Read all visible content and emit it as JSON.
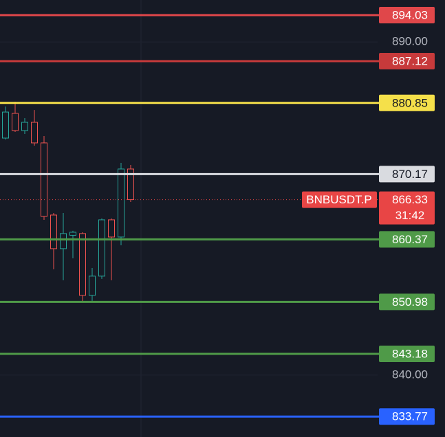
{
  "chart_data": {
    "type": "candlestick",
    "categories": [
      null,
      null,
      null,
      null,
      null,
      null,
      null,
      null,
      null,
      null,
      null,
      null,
      null,
      null
    ],
    "open": [
      875.57,
      879.28,
      876.7,
      877.94,
      874.85,
      864.02,
      858.97,
      860.98,
      861.24,
      851.96,
      854.85,
      863.3,
      860.72,
      870.93
    ],
    "high": [
      880.31,
      881.03,
      878.56,
      879.79,
      875.88,
      864.33,
      864.33,
      861.65,
      861.44,
      856.08,
      863.51,
      863.51,
      871.86,
      871.55
    ],
    "low": [
      875.36,
      876.49,
      876.19,
      874.43,
      863.3,
      855.88,
      854.23,
      857.53,
      850.93,
      851.13,
      854.43,
      854.23,
      859.48,
      865.98
    ],
    "close": [
      879.48,
      876.7,
      877.94,
      874.85,
      863.81,
      858.97,
      861.24,
      861.44,
      851.96,
      854.85,
      863.3,
      860.72,
      870.93,
      866.33
    ],
    "up_color": "#26a69a",
    "down_color": "#ef5350",
    "ylim": [
      830.7,
      896.3
    ],
    "yticks": [
      {
        "value": 840,
        "label": "840.00"
      },
      {
        "value": 890,
        "label": "890.00"
      }
    ],
    "levels": [
      {
        "value": 894.03,
        "color": "#e0474a",
        "label_color": "#ffffff"
      },
      {
        "value": 887.12,
        "color": "#c73a3b",
        "label_color": "#ffffff"
      },
      {
        "value": 880.85,
        "color": "#f5e04a",
        "label_color": "#131722"
      },
      {
        "value": 870.17,
        "color": "#d9dbe0",
        "label_color": "#131722"
      },
      {
        "value": 860.37,
        "color": "#4f9a48",
        "label_color": "#ffffff"
      },
      {
        "value": 850.98,
        "color": "#4f9a48",
        "label_color": "#ffffff"
      },
      {
        "value": 843.18,
        "color": "#4f9a48",
        "label_color": "#ffffff"
      },
      {
        "value": 833.77,
        "color": "#2962ff",
        "label_color": "#ffffff"
      }
    ],
    "last": {
      "symbol": "BNBUSDT.P",
      "value": 866.33,
      "countdown": "31:42",
      "color": "#e84545"
    }
  }
}
